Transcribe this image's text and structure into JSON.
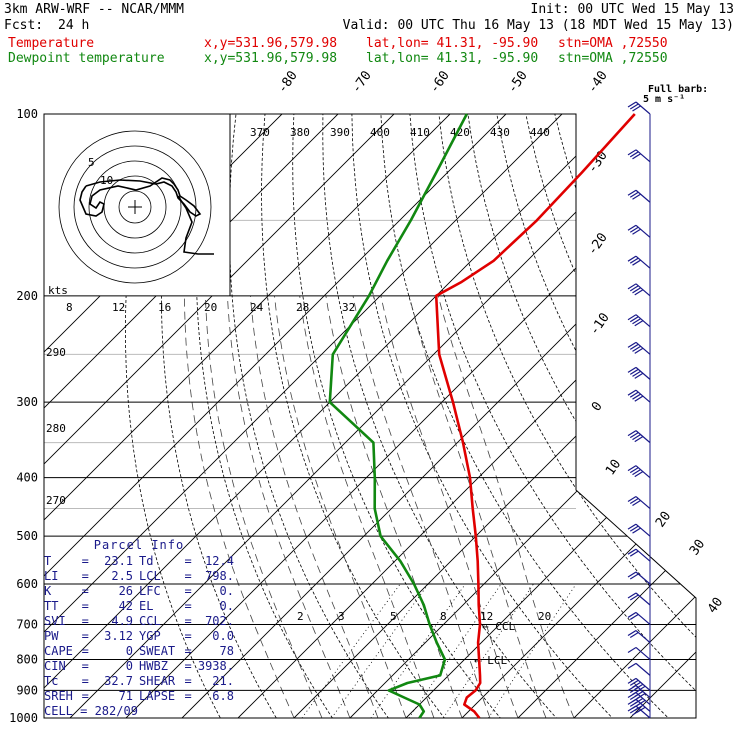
{
  "header": {
    "line1_left": "3km ARW-WRF -- NCAR/MMM",
    "line1_right": "Init: 00 UTC Wed 15 May 13",
    "line2_left_label": "Fcst:",
    "line2_left_value": "24 h",
    "line2_right": "Valid: 00 UTC Thu 16 May 13 (18 MDT Wed 15 May 13)",
    "temp_label": "Temperature",
    "dew_label": "Dewpoint temperature",
    "xy": "x,y=531.96,579.98",
    "latlon": "lat,lon= 41.31, -95.90",
    "stn": "stn=OMA ,72550",
    "barb_legend": "Full barb:",
    "barb_units": "5 m s⁻¹"
  },
  "parcel": {
    "title": "Parcel Info",
    "rows": [
      [
        "T",
        "23.1",
        "Td",
        "12.4"
      ],
      [
        "LI",
        "2.5",
        "LCL",
        "798."
      ],
      [
        "K",
        "26",
        "LFC",
        "0."
      ],
      [
        "TT",
        "42",
        "EL",
        "0."
      ],
      [
        "SVI",
        "4.9",
        "CCL",
        "702."
      ],
      [
        "PW",
        "3.12",
        "YGP",
        "0.0"
      ],
      [
        "CAPE",
        "0",
        "SWEAT",
        "78"
      ],
      [
        "CIN",
        "0",
        "HWBZ",
        "3938."
      ],
      [
        "Tc",
        "32.7",
        "SHEAR",
        "21."
      ],
      [
        "SREH",
        "71",
        "LAPSE",
        "6.8"
      ]
    ],
    "cell": "CELL = 282/09"
  },
  "chart_data": {
    "type": "line",
    "title": "",
    "xlabel": "",
    "ylabel": "",
    "pressure_levels": [
      100,
      200,
      300,
      400,
      500,
      600,
      700,
      800,
      900,
      1000
    ],
    "isotherm_labels": [
      -80,
      -70,
      -60,
      -50,
      -40,
      -30,
      -20,
      -10,
      0,
      10,
      20,
      30,
      40
    ],
    "theta_labels": [
      370,
      380,
      390,
      400,
      410,
      420,
      430,
      440
    ],
    "hodograph_speed_labels": [
      8,
      12,
      16,
      20,
      24,
      28,
      32
    ],
    "hodograph_ring_labels": [
      "5",
      "10"
    ],
    "hodo_unit": "kts",
    "theta_side_labels": [
      290,
      280,
      270
    ],
    "mixing_ratio_labels": [
      "2",
      "3",
      "5",
      "8",
      "12",
      "20"
    ],
    "markers": [
      "CCL",
      "LCL"
    ],
    "series": [
      {
        "name": "Temperature",
        "color": "#e00000",
        "p": [
          1000,
          975,
          950,
          925,
          900,
          875,
          850,
          800,
          750,
          700,
          650,
          600,
          550,
          500,
          450,
          400,
          350,
          300,
          250,
          200,
          190,
          175,
          150,
          125,
          100
        ],
        "t": [
          23.1,
          21.0,
          18.0,
          17.2,
          17.5,
          17.0,
          15.6,
          12.6,
          9.4,
          6.5,
          2.8,
          -1.0,
          -5.2,
          -10.0,
          -15.5,
          -21.5,
          -29.0,
          -38.0,
          -49.0,
          -60.0,
          -58.0,
          -56.0,
          -55.5,
          -56.0,
          -57.0
        ]
      },
      {
        "name": "Dewpoint temperature",
        "color": "#118811",
        "p": [
          1000,
          975,
          950,
          925,
          900,
          875,
          850,
          800,
          750,
          700,
          650,
          600,
          550,
          500,
          450,
          400,
          350,
          300,
          250,
          200,
          175,
          150,
          125,
          100
        ],
        "t": [
          12.4,
          12.0,
          10.0,
          6.0,
          2.0,
          4.0,
          8.5,
          6.5,
          2.0,
          -2.5,
          -7.0,
          -12.5,
          -19.0,
          -27.0,
          -33.0,
          -38.5,
          -45.0,
          -60.0,
          -68.0,
          -72.0,
          -75.0,
          -78.0,
          -82.0,
          -87.0
        ]
      }
    ],
    "wind_barbs": {
      "p": [
        100,
        120,
        140,
        160,
        180,
        200,
        225,
        250,
        275,
        300,
        350,
        400,
        450,
        500,
        550,
        600,
        650,
        700,
        750,
        800,
        850,
        900,
        925,
        950,
        975,
        1000
      ],
      "speed_ms": [
        15,
        15,
        15,
        15,
        15,
        20,
        20,
        20,
        20,
        20,
        20,
        20,
        15,
        15,
        10,
        10,
        10,
        10,
        10,
        5,
        5,
        25,
        25,
        25,
        25,
        15
      ]
    },
    "xlim": [
      -40,
      45
    ],
    "ylim": [
      1000,
      100
    ],
    "y_scale": "log"
  }
}
